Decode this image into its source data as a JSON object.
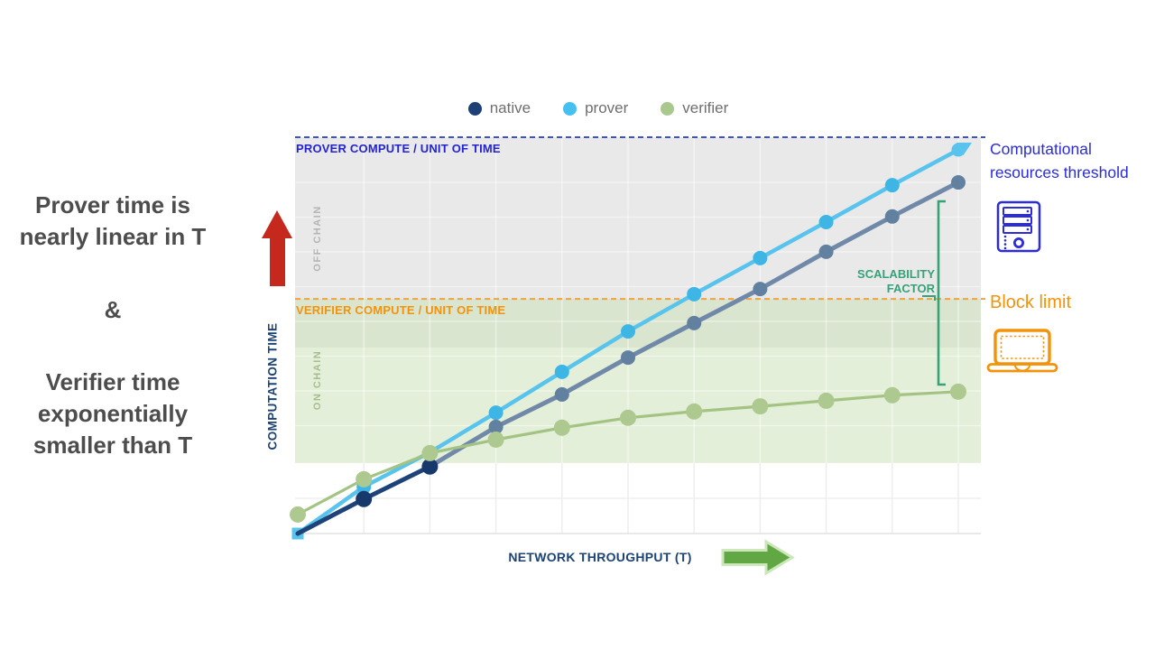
{
  "slide": {
    "left_note": {
      "part1": "Prover time is\nnearly linear in T",
      "separator": "&",
      "part2": "Verifier time\nexponentially\nsmaller than T",
      "color": "#4d4d4d"
    },
    "callouts": {
      "computational_threshold": {
        "text": "Computational resources threshold",
        "color": "#2c2cd8"
      },
      "block_limit": {
        "text": "Block limit",
        "color": "#f2930c"
      },
      "scalability_factor": {
        "text": "SCALABILITY FACTOR",
        "color": "#35a277"
      }
    },
    "arrows": {
      "computation_time_color": "#c5281c",
      "throughput_color": "#61a744",
      "throughput_outline": "#cde6bb"
    }
  },
  "legend": {
    "items": [
      {
        "label": "native",
        "color": "#1d4077"
      },
      {
        "label": "prover",
        "color": "#45c0f0"
      },
      {
        "label": "verifier",
        "color": "#a9c88e"
      }
    ]
  },
  "chart_data": {
    "type": "line",
    "title": "",
    "xlabel": "NETWORK THROUGHPUT (T)",
    "ylabel": "COMPUTATION TIME",
    "axis_label_color": "#1d4373",
    "x": [
      0,
      1,
      2,
      3,
      4,
      5,
      6,
      7,
      8,
      9,
      10
    ],
    "x_tick_labels_visible": false,
    "y_tick_labels_visible": false,
    "ylim": [
      0,
      100
    ],
    "grid": true,
    "legend_position": "top-center",
    "series": [
      {
        "name": "native",
        "values": [
          0,
          8.7,
          16.9,
          26.9,
          35.1,
          44.4,
          53.1,
          61.7,
          71.1,
          80.0,
          88.6
        ],
        "color": "#1e4379",
        "dot_color": "#17386b",
        "faded_color": "#7089a9",
        "faded_dot_color": "#62809f",
        "fade_after_index": 2,
        "note": "line shown faded after exceeding on-chain block limit"
      },
      {
        "name": "prover",
        "values": [
          0,
          11.8,
          20.5,
          30.5,
          40.8,
          51.0,
          60.4,
          69.5,
          78.6,
          87.9,
          96.8
        ],
        "color": "#58c4ee",
        "dot_color": "#3db6e6",
        "end_arrow": true
      },
      {
        "name": "verifier",
        "values": [
          4.8,
          13.7,
          20.3,
          23.7,
          26.7,
          29.2,
          30.8,
          32.1,
          33.5,
          34.9,
          35.8
        ],
        "color": "#a3c383",
        "dot_color": "#adc98f"
      }
    ],
    "thresholds": [
      {
        "label": "PROVER COMPUTE / UNIT OF TIME",
        "value": 100,
        "color": "#3f51c9",
        "label_color": "#2323d3",
        "style": "dashed"
      },
      {
        "label": "VERIFIER COMPUTE / UNIT OF TIME",
        "value": 59.2,
        "color": "#f2a23c",
        "label_color": "#f2930c",
        "style": "dashed"
      }
    ],
    "regions": [
      {
        "label": "OFF CHAIN",
        "from": 59.2,
        "to": 100,
        "color": "#e9e9e9",
        "label_color": "#b5b5b5"
      },
      {
        "label": "ON CHAIN",
        "from": 17.8,
        "to": 59.2,
        "color": "#cde2ba",
        "label_color": "#a7bd90"
      }
    ],
    "annotations": [
      "SCALABILITY FACTOR"
    ]
  }
}
